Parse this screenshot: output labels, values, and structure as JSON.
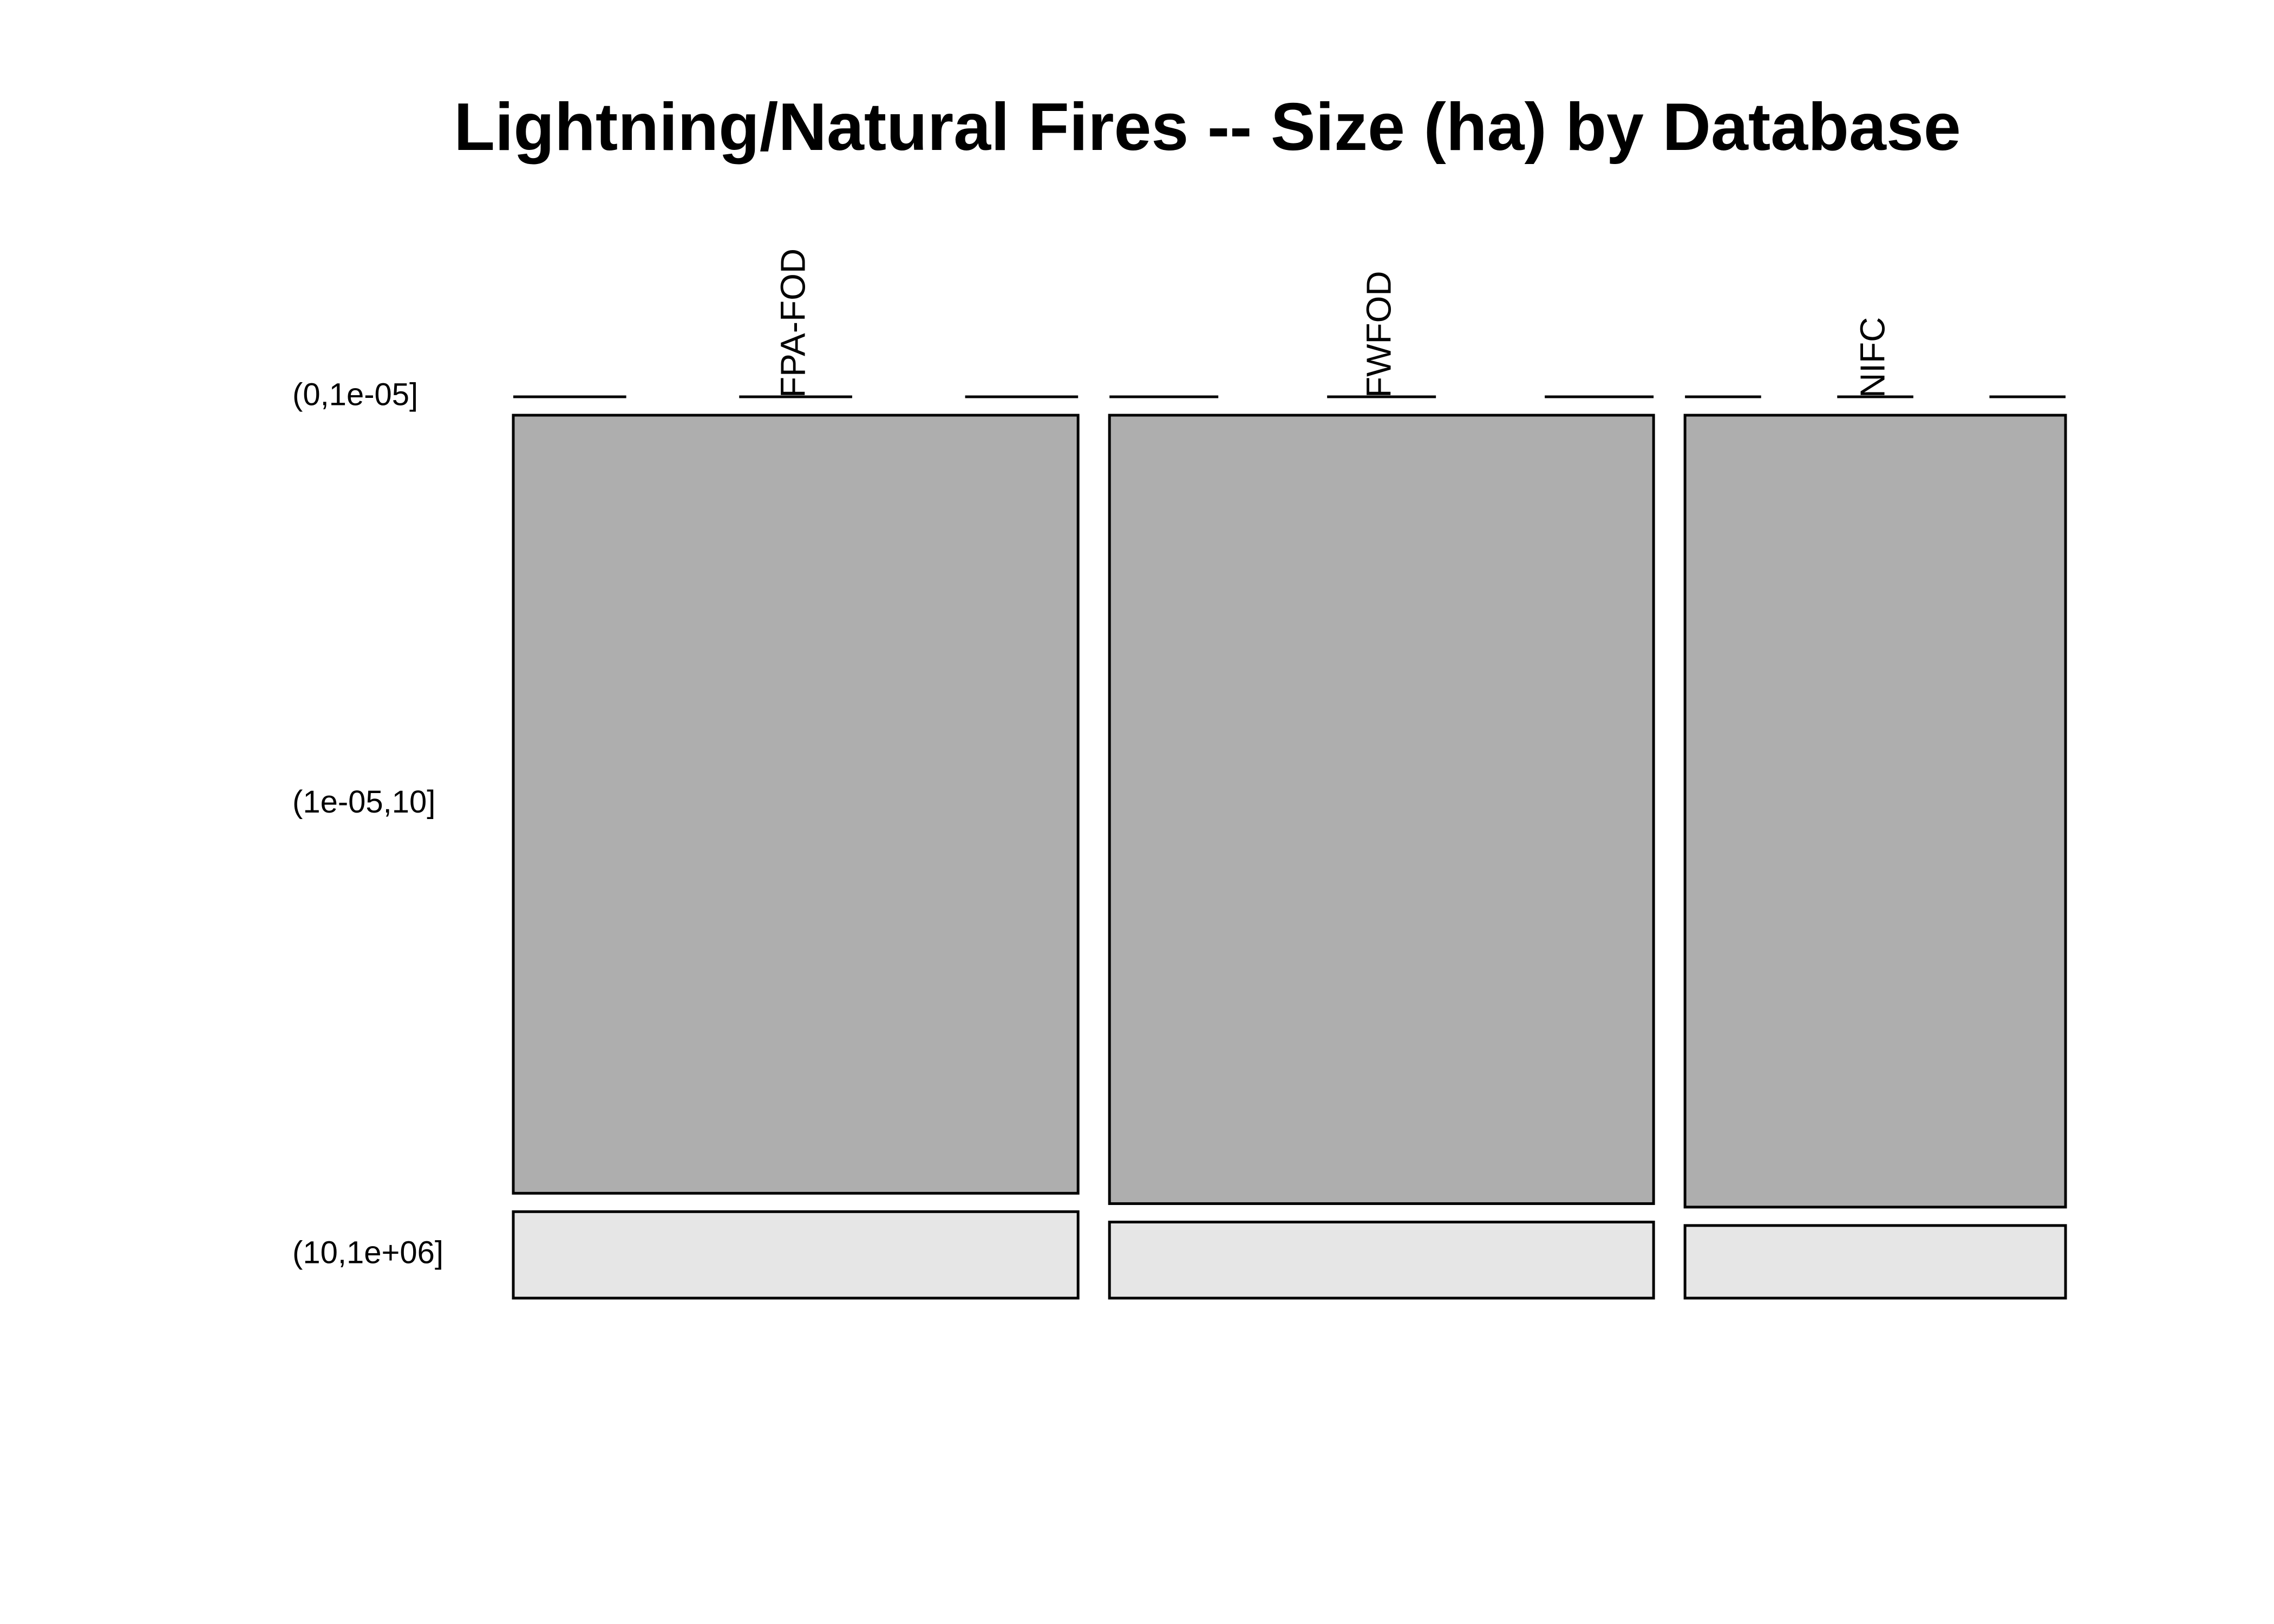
{
  "chart_data": {
    "type": "mosaic",
    "title": "Lightning/Natural Fires -- Size (ha) by Database",
    "xlabel": "",
    "ylabel": "",
    "categories": [
      "FPA-FOD",
      "FWFOD",
      "NIFC"
    ],
    "rows": [
      "(0,1e-05]",
      "(1e-05,10]",
      "(10,1e+06]"
    ],
    "column_proportions": [
      0.3792,
      0.3653,
      0.2555
    ],
    "cell_proportions": [
      [
        0.0,
        0.9,
        0.1
      ],
      [
        0.0,
        0.912,
        0.088
      ],
      [
        0.0,
        0.916,
        0.084
      ]
    ],
    "colors": [
      "#ffffff",
      "#aeaeae",
      "#e6e6e6"
    ],
    "stroke_color": "#000000"
  }
}
